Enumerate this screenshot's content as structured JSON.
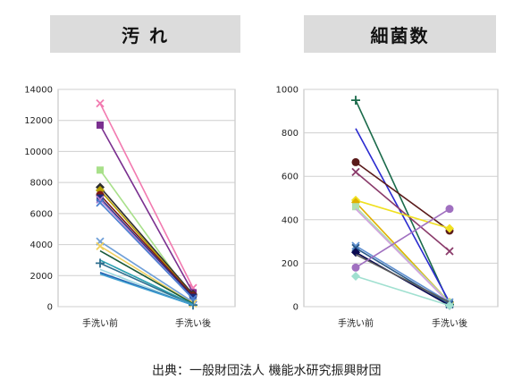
{
  "source_note": "出典：一般財団法人 機能水研究振興財団",
  "chart_data": [
    {
      "type": "line",
      "title": "汚 れ",
      "categories": [
        "手洗い前",
        "手洗い後"
      ],
      "ylim": [
        0,
        14000
      ],
      "yticks": [
        "0",
        "2000",
        "4000",
        "6000",
        "8000",
        "10000",
        "12000",
        "14000"
      ],
      "grid": true,
      "series": [
        {
          "values": [
            13100,
            1200
          ],
          "color": "#f27ab0",
          "marker": "x"
        },
        {
          "values": [
            11700,
            900
          ],
          "color": "#7a2f8f",
          "marker": "square"
        },
        {
          "values": [
            8800,
            500
          ],
          "color": "#a8e08a",
          "marker": "square"
        },
        {
          "values": [
            7700,
            800
          ],
          "color": "#2d2d2d",
          "marker": "diamond"
        },
        {
          "values": [
            7500,
            700
          ],
          "color": "#b7a000",
          "marker": "diamond"
        },
        {
          "values": [
            7200,
            700
          ],
          "color": "#7b1a1a",
          "marker": "circle"
        },
        {
          "values": [
            7000,
            600
          ],
          "color": "#1a2a7a",
          "marker": "square"
        },
        {
          "values": [
            6900,
            500
          ],
          "color": "#b07fd0",
          "marker": "x"
        },
        {
          "values": [
            6700,
            500
          ],
          "color": "#4a7fd0",
          "marker": "x"
        },
        {
          "values": [
            4200,
            300
          ],
          "color": "#6f9fd8",
          "marker": "x"
        },
        {
          "values": [
            3900,
            200
          ],
          "color": "#f0d060",
          "marker": "x"
        },
        {
          "values": [
            3600,
            200
          ],
          "color": "#1a5a3a",
          "marker": "none"
        },
        {
          "values": [
            3000,
            150
          ],
          "color": "#2aa0b0",
          "marker": "none"
        },
        {
          "values": [
            2800,
            100
          ],
          "color": "#2f6f8f",
          "marker": "plus"
        },
        {
          "values": [
            2400,
            100
          ],
          "color": "#9fd8e0",
          "marker": "none"
        },
        {
          "values": [
            2200,
            100
          ],
          "color": "#1f5fb0",
          "marker": "none"
        },
        {
          "values": [
            2100,
            100
          ],
          "color": "#40a0d0",
          "marker": "none"
        }
      ]
    },
    {
      "type": "line",
      "title": "細菌数",
      "categories": [
        "手洗い前",
        "手洗い後"
      ],
      "ylim": [
        0,
        1000
      ],
      "yticks": [
        "0",
        "200",
        "400",
        "600",
        "800",
        "1000"
      ],
      "grid": true,
      "series": [
        {
          "values": [
            950,
            10
          ],
          "color": "#1a6a4a",
          "marker": "plus"
        },
        {
          "values": [
            820,
            20
          ],
          "color": "#2a2ad0",
          "marker": "none"
        },
        {
          "values": [
            665,
            350
          ],
          "color": "#5a1a1a",
          "marker": "circle"
        },
        {
          "values": [
            620,
            255
          ],
          "color": "#8a3a6a",
          "marker": "x"
        },
        {
          "values": [
            490,
            360
          ],
          "color": "#f0e020",
          "marker": "diamond"
        },
        {
          "values": [
            480,
            20
          ],
          "color": "#e0b000",
          "marker": "diamond"
        },
        {
          "values": [
            460,
            20
          ],
          "color": "#b0e0b0",
          "marker": "square"
        },
        {
          "values": [
            450,
            15
          ],
          "color": "#d0a0e0",
          "marker": "none"
        },
        {
          "values": [
            280,
            20
          ],
          "color": "#6090d0",
          "marker": "x"
        },
        {
          "values": [
            270,
            10
          ],
          "color": "#2a5a8a",
          "marker": "x"
        },
        {
          "values": [
            250,
            5
          ],
          "color": "#0a0a50",
          "marker": "diamond"
        },
        {
          "values": [
            240,
            20
          ],
          "color": "#5a5a5a",
          "marker": "none"
        },
        {
          "values": [
            180,
            450
          ],
          "color": "#a070c0",
          "marker": "circle"
        },
        {
          "values": [
            140,
            5
          ],
          "color": "#a0e0d0",
          "marker": "diamond"
        }
      ]
    }
  ]
}
